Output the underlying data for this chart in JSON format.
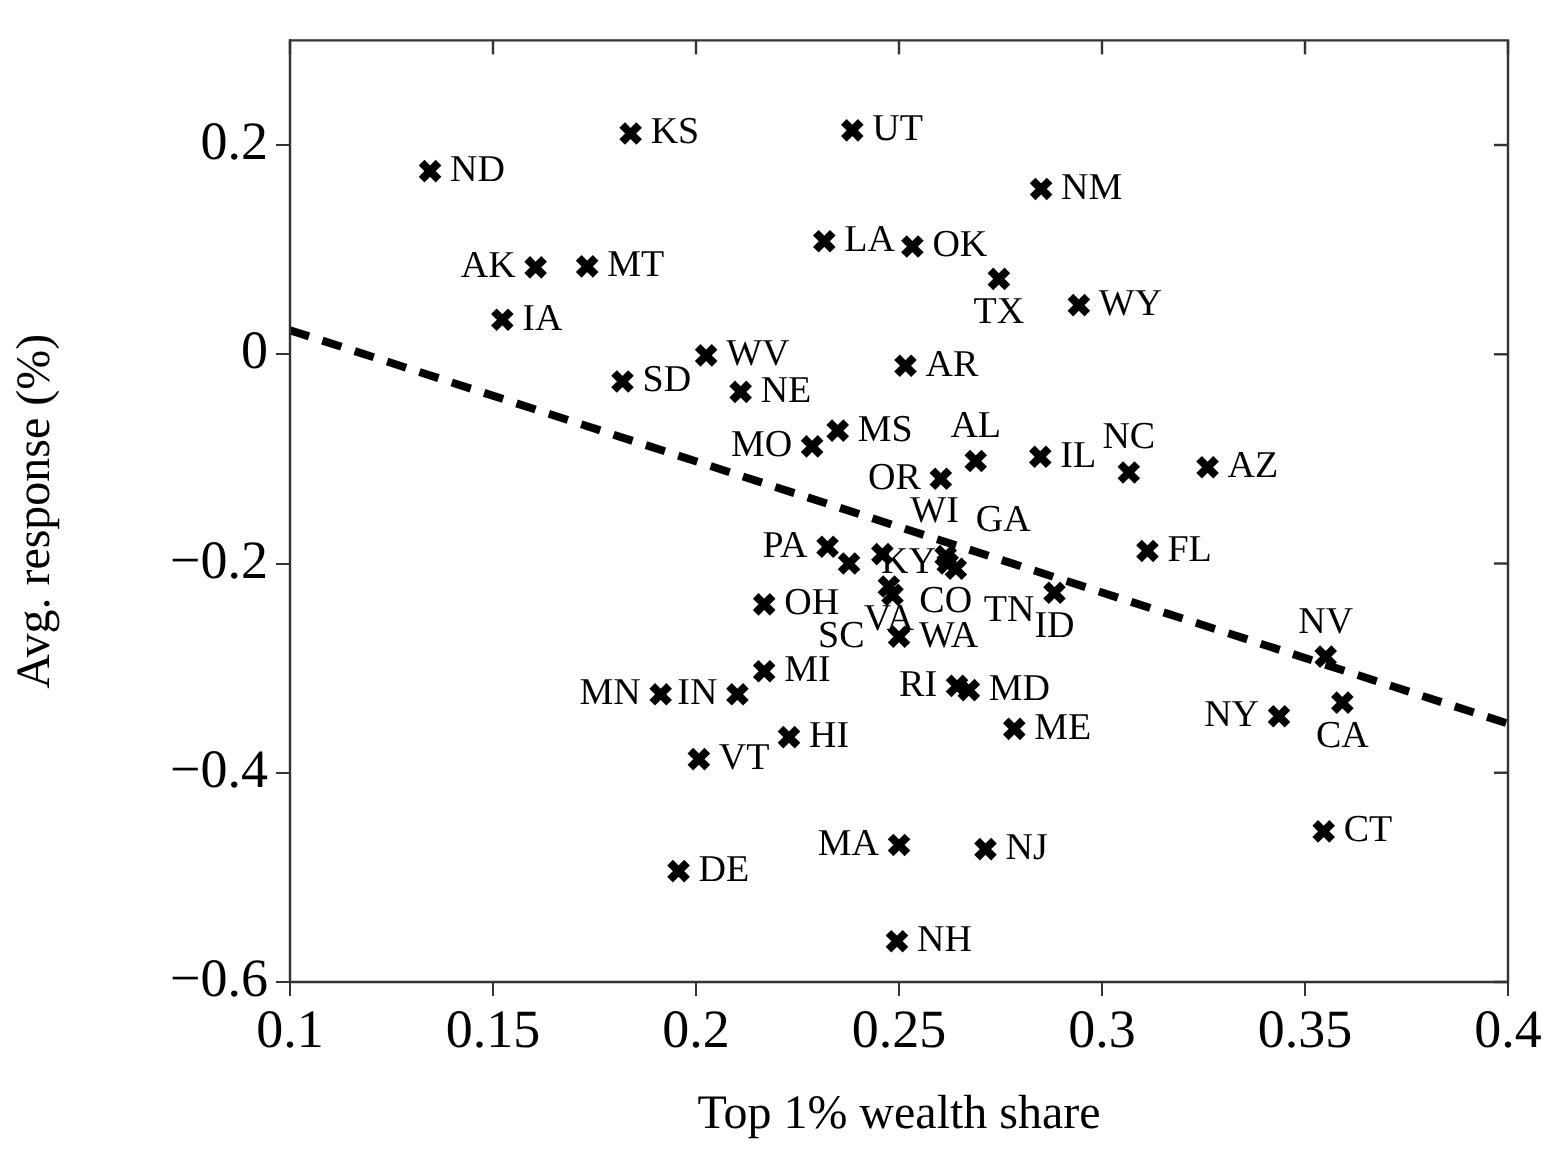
{
  "chart_data": {
    "type": "scatter",
    "xlabel": "Top 1% wealth share",
    "ylabel": "Avg. response (%)",
    "xlim": [
      0.1,
      0.4
    ],
    "xticks": [
      0.1,
      0.15,
      0.2,
      0.25,
      0.3,
      0.35,
      0.4
    ],
    "ylim": [
      -0.6,
      0.3
    ],
    "yticks": [
      {
        "value": -0.6,
        "label": "−0.6"
      },
      {
        "value": -0.4,
        "label": "−0.4"
      },
      {
        "value": -0.2,
        "label": "−0.2"
      },
      0,
      0.2
    ],
    "grid": false,
    "marker": "cross",
    "color": "#000000",
    "x": [
      0.1345,
      0.1839,
      0.1605,
      0.1732,
      0.1523,
      0.2316,
      0.1819,
      0.2025,
      0.211,
      0.2286,
      0.2349,
      0.2385,
      0.285,
      0.2533,
      0.2746,
      0.2943,
      0.2516,
      0.2689,
      0.2848,
      0.2603,
      0.3066,
      0.326,
      0.3112,
      0.2883,
      0.3551,
      0.3592,
      0.3436,
      0.3546,
      0.2713,
      0.25,
      0.2495,
      0.2784,
      0.2672,
      0.2643,
      0.25,
      0.2168,
      0.1913,
      0.2102,
      0.2168,
      0.2229,
      0.2007,
      0.1957,
      0.2324,
      0.2377,
      0.2459,
      0.2615,
      0.262,
      0.264,
      0.2475,
      0.2484
    ],
    "values": [
      0.175,
      0.211,
      0.083,
      0.084,
      0.033,
      0.108,
      -0.026,
      -0.001,
      -0.036,
      -0.088,
      -0.073,
      0.214,
      0.158,
      0.103,
      0.072,
      0.047,
      -0.011,
      -0.102,
      -0.098,
      -0.119,
      -0.113,
      -0.108,
      -0.188,
      -0.228,
      -0.289,
      -0.333,
      -0.346,
      -0.456,
      -0.473,
      -0.469,
      -0.561,
      -0.358,
      -0.321,
      -0.317,
      -0.27,
      -0.239,
      -0.325,
      -0.325,
      -0.303,
      -0.366,
      -0.387,
      -0.494,
      -0.184,
      -0.2,
      -0.191,
      -0.193,
      -0.2,
      -0.205,
      -0.222,
      -0.23
    ],
    "value_labels": [
      "ND",
      "KS",
      "AK",
      "MT",
      "IA",
      "LA",
      "SD",
      "WV",
      "NE",
      "MO",
      "MS",
      "UT",
      "NM",
      "OK",
      "TX",
      "WY",
      "AR",
      "AL",
      "IL",
      "OR",
      "NC",
      "AZ",
      "FL",
      "ID",
      "NV",
      "CA",
      "NY",
      "CT",
      "NJ",
      "MA",
      "NH",
      "ME",
      "MD",
      "RI",
      "WA",
      "OH",
      "MN",
      "IN",
      "MI",
      "HI",
      "VT",
      "DE",
      "PA",
      "KY",
      "WI",
      "CO",
      "GA",
      "TN",
      "VA",
      "SC"
    ],
    "series": [
      {
        "type": "line",
        "x": [
          0.1,
          0.4
        ],
        "values": [
          0.023,
          -0.353
        ],
        "color": "#000000",
        "line_style": "dashed",
        "marker": "none"
      }
    ],
    "legend": false
  }
}
